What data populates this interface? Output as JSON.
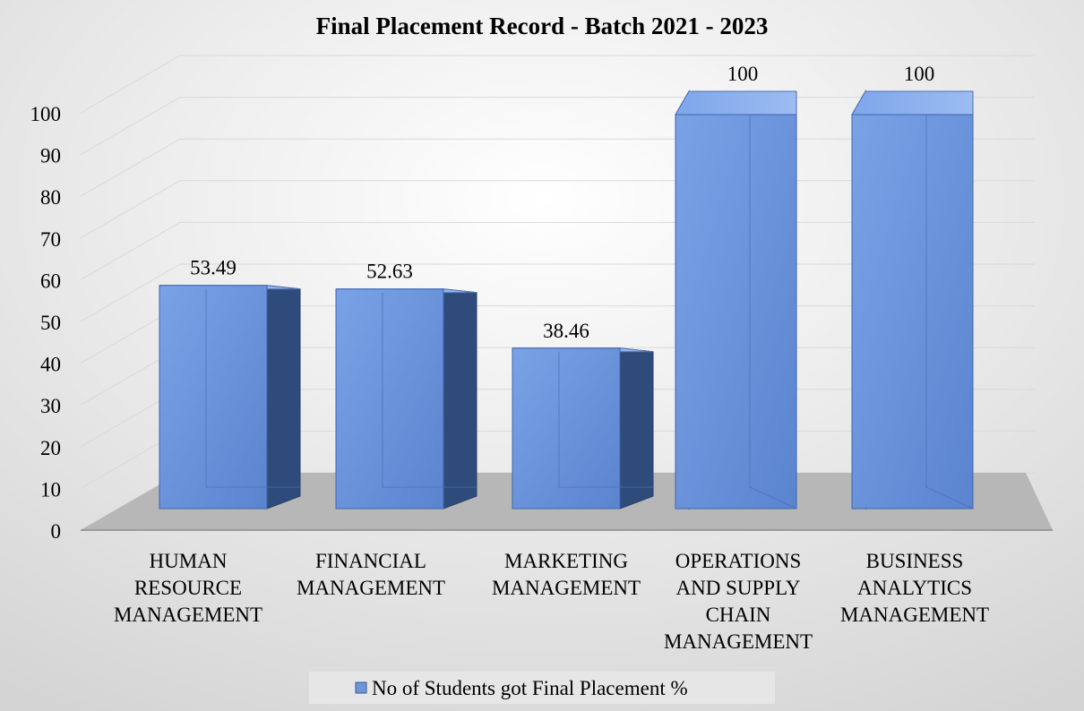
{
  "chart_data": {
    "type": "bar",
    "title": "Final Placement Record - Batch 2021 - 2023",
    "categories": [
      [
        "HUMAN",
        "RESOURCE",
        "MANAGEMENT"
      ],
      [
        "FINANCIAL",
        "MANAGEMENT"
      ],
      [
        "MARKETING",
        "MANAGEMENT"
      ],
      [
        "OPERATIONS",
        "AND SUPPLY",
        "CHAIN",
        "MANAGEMENT"
      ],
      [
        "BUSINESS",
        "ANALYTICS",
        "MANAGEMENT"
      ]
    ],
    "series": [
      {
        "name": "No of Students got Final Placement %",
        "values": [
          53.49,
          52.63,
          38.46,
          100,
          100
        ],
        "value_labels": [
          "53.49",
          "52.63",
          "38.46",
          "100",
          "100"
        ]
      }
    ],
    "yticks": [
      0,
      10,
      20,
      30,
      40,
      50,
      60,
      70,
      80,
      90,
      100
    ],
    "ylim": [
      0,
      100
    ],
    "grid": true,
    "legend_position": "bottom",
    "style": "3d-column",
    "colors": {
      "bar_front": "#6f96dc",
      "bar_side": "#2f4b7c",
      "bar_top": "#8fb0ea",
      "floor": "#b7b7b7",
      "background_light": "#ffffff",
      "background_dark": "#d6d6d6",
      "text": "#000000"
    }
  }
}
